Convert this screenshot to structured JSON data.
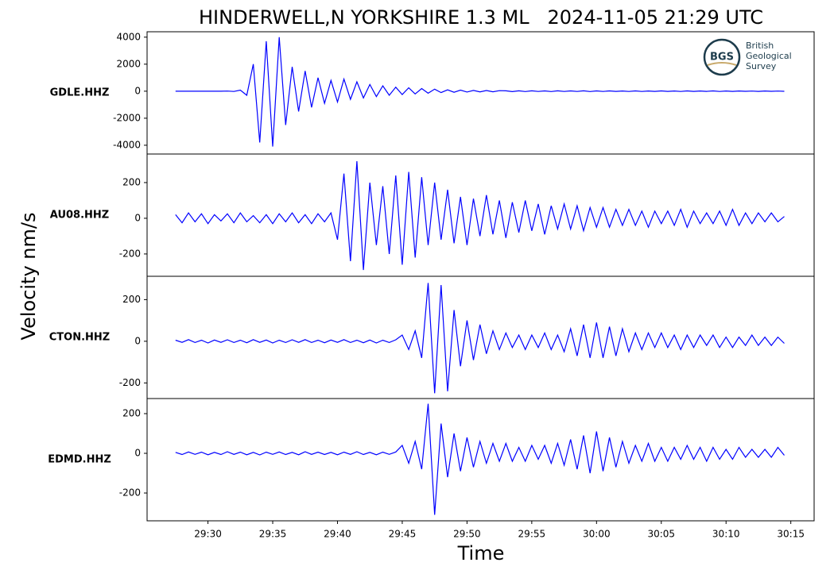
{
  "title": "HINDERWELL,N YORKSHIRE 1.3 ML   2024-11-05 21:29 UTC",
  "y_label": "Velocity nm/s",
  "x_label": "Time",
  "logo": {
    "mark": "BGS",
    "lines": [
      "British",
      "Geological",
      "Survey"
    ]
  },
  "chart_data": [
    {
      "type": "line",
      "ylabel": "GDLE.HHZ",
      "color": "#0000ff",
      "xlim": [
        1765.3,
        1816.8
      ],
      "ylim": [
        -4650,
        4400
      ],
      "yticks": [
        -4000,
        -2000,
        0,
        2000,
        4000
      ],
      "x": [
        1767.5,
        1768,
        1768.5,
        1769,
        1769.5,
        1770,
        1770.5,
        1771,
        1771.5,
        1772,
        1772.5,
        1773,
        1773.5,
        1774,
        1774.5,
        1775,
        1775.5,
        1776,
        1776.5,
        1777,
        1777.5,
        1778,
        1778.5,
        1779,
        1779.5,
        1780,
        1780.5,
        1781,
        1781.5,
        1782,
        1782.5,
        1783,
        1783.5,
        1784,
        1784.5,
        1785,
        1785.5,
        1786,
        1786.5,
        1787,
        1787.5,
        1788,
        1788.5,
        1789,
        1789.5,
        1790,
        1790.5,
        1791,
        1791.5,
        1792,
        1792.5,
        1793,
        1793.5,
        1794,
        1794.5,
        1795,
        1795.5,
        1796,
        1796.5,
        1797,
        1797.5,
        1798,
        1798.5,
        1799,
        1799.5,
        1800,
        1800.5,
        1801,
        1801.5,
        1802,
        1802.5,
        1803,
        1803.5,
        1804,
        1804.5,
        1805,
        1805.5,
        1806,
        1806.5,
        1807,
        1807.5,
        1808,
        1808.5,
        1809,
        1809.5,
        1810,
        1810.5,
        1811,
        1811.5,
        1812,
        1812.5,
        1813,
        1813.5,
        1814,
        1814.5
      ],
      "values": [
        0,
        0,
        0,
        0,
        0,
        0,
        0,
        0,
        10,
        -20,
        80,
        -300,
        2000,
        -3800,
        3700,
        -4100,
        4000,
        -2500,
        1800,
        -1500,
        1500,
        -1200,
        1000,
        -900,
        800,
        -800,
        900,
        -600,
        700,
        -500,
        500,
        -400,
        400,
        -300,
        300,
        -250,
        250,
        -200,
        200,
        -150,
        150,
        -100,
        100,
        -80,
        80,
        -60,
        60,
        -50,
        50,
        -40,
        40,
        30,
        -30,
        25,
        -25,
        30,
        -20,
        20,
        -25,
        25,
        -20,
        20,
        -20,
        25,
        -25,
        20,
        -20,
        20,
        -15,
        15,
        -20,
        20,
        -20,
        15,
        -15,
        20,
        -15,
        15,
        -20,
        20,
        -15,
        15,
        -15,
        20,
        -20,
        15,
        -15,
        15,
        -10,
        10,
        -15,
        15,
        -10,
        10,
        -10
      ]
    },
    {
      "type": "line",
      "ylabel": "AU08.HHZ",
      "color": "#0000ff",
      "xlim": [
        1765.3,
        1816.8
      ],
      "ylim": [
        -325,
        360
      ],
      "yticks": [
        -200,
        0,
        200
      ],
      "x": [
        1767.5,
        1768,
        1768.5,
        1769,
        1769.5,
        1770,
        1770.5,
        1771,
        1771.5,
        1772,
        1772.5,
        1773,
        1773.5,
        1774,
        1774.5,
        1775,
        1775.5,
        1776,
        1776.5,
        1777,
        1777.5,
        1778,
        1778.5,
        1779,
        1779.5,
        1780,
        1780.5,
        1781,
        1781.5,
        1782,
        1782.5,
        1783,
        1783.5,
        1784,
        1784.5,
        1785,
        1785.5,
        1786,
        1786.5,
        1787,
        1787.5,
        1788,
        1788.5,
        1789,
        1789.5,
        1790,
        1790.5,
        1791,
        1791.5,
        1792,
        1792.5,
        1793,
        1793.5,
        1794,
        1794.5,
        1795,
        1795.5,
        1796,
        1796.5,
        1797,
        1797.5,
        1798,
        1798.5,
        1799,
        1799.5,
        1800,
        1800.5,
        1801,
        1801.5,
        1802,
        1802.5,
        1803,
        1803.5,
        1804,
        1804.5,
        1805,
        1805.5,
        1806,
        1806.5,
        1807,
        1807.5,
        1808,
        1808.5,
        1809,
        1809.5,
        1810,
        1810.5,
        1811,
        1811.5,
        1812,
        1812.5,
        1813,
        1813.5,
        1814,
        1814.5
      ],
      "values": [
        20,
        -25,
        30,
        -20,
        25,
        -30,
        20,
        -15,
        25,
        -25,
        30,
        -20,
        15,
        -25,
        20,
        -30,
        25,
        -20,
        30,
        -25,
        20,
        -30,
        25,
        -20,
        30,
        -120,
        250,
        -240,
        320,
        -290,
        200,
        -150,
        180,
        -200,
        240,
        -260,
        260,
        -220,
        230,
        -150,
        200,
        -120,
        160,
        -140,
        120,
        -150,
        110,
        -100,
        130,
        -90,
        100,
        -110,
        90,
        -80,
        100,
        -70,
        80,
        -90,
        70,
        -60,
        80,
        -60,
        70,
        -70,
        60,
        -50,
        60,
        -50,
        50,
        -40,
        50,
        -40,
        40,
        -50,
        40,
        -30,
        40,
        -40,
        50,
        -50,
        40,
        -30,
        30,
        -30,
        40,
        -40,
        50,
        -40,
        30,
        -30,
        30,
        -20,
        30,
        -20,
        10
      ]
    },
    {
      "type": "line",
      "ylabel": "CTON.HHZ",
      "color": "#0000ff",
      "xlim": [
        1765.3,
        1816.8
      ],
      "ylim": [
        -275,
        312
      ],
      "yticks": [
        -200,
        0,
        200
      ],
      "x": [
        1767.5,
        1768,
        1768.5,
        1769,
        1769.5,
        1770,
        1770.5,
        1771,
        1771.5,
        1772,
        1772.5,
        1773,
        1773.5,
        1774,
        1774.5,
        1775,
        1775.5,
        1776,
        1776.5,
        1777,
        1777.5,
        1778,
        1778.5,
        1779,
        1779.5,
        1780,
        1780.5,
        1781,
        1781.5,
        1782,
        1782.5,
        1783,
        1783.5,
        1784,
        1784.5,
        1785,
        1785.5,
        1786,
        1786.5,
        1787,
        1787.5,
        1788,
        1788.5,
        1789,
        1789.5,
        1790,
        1790.5,
        1791,
        1791.5,
        1792,
        1792.5,
        1793,
        1793.5,
        1794,
        1794.5,
        1795,
        1795.5,
        1796,
        1796.5,
        1797,
        1797.5,
        1798,
        1798.5,
        1799,
        1799.5,
        1800,
        1800.5,
        1801,
        1801.5,
        1802,
        1802.5,
        1803,
        1803.5,
        1804,
        1804.5,
        1805,
        1805.5,
        1806,
        1806.5,
        1807,
        1807.5,
        1808,
        1808.5,
        1809,
        1809.5,
        1810,
        1810.5,
        1811,
        1811.5,
        1812,
        1812.5,
        1813,
        1813.5,
        1814,
        1814.5
      ],
      "values": [
        5,
        -5,
        8,
        -6,
        5,
        -8,
        6,
        -5,
        7,
        -6,
        5,
        -7,
        8,
        -5,
        6,
        -8,
        5,
        -6,
        7,
        -5,
        8,
        -6,
        5,
        -7,
        6,
        -5,
        8,
        -6,
        5,
        -7,
        6,
        -8,
        5,
        -6,
        7,
        30,
        -40,
        50,
        -80,
        280,
        -250,
        270,
        -240,
        150,
        -120,
        100,
        -90,
        80,
        -60,
        50,
        -40,
        40,
        -30,
        30,
        -40,
        30,
        -30,
        40,
        -40,
        30,
        -50,
        60,
        -70,
        80,
        -80,
        90,
        -80,
        70,
        -70,
        60,
        -50,
        40,
        -40,
        40,
        -30,
        40,
        -30,
        30,
        -40,
        30,
        -30,
        30,
        -20,
        30,
        -30,
        20,
        -30,
        20,
        -20,
        30,
        -20,
        20,
        -20,
        20,
        -10
      ]
    },
    {
      "type": "line",
      "ylabel": "EDMD.HHZ",
      "color": "#0000ff",
      "xlim": [
        1765.3,
        1816.8
      ],
      "ylim": [
        -340,
        276
      ],
      "yticks": [
        -200,
        0,
        200
      ],
      "xticks": [
        {
          "value": 1770,
          "label": "29:30"
        },
        {
          "value": 1775,
          "label": "29:35"
        },
        {
          "value": 1780,
          "label": "29:40"
        },
        {
          "value": 1785,
          "label": "29:45"
        },
        {
          "value": 1790,
          "label": "29:50"
        },
        {
          "value": 1795,
          "label": "29:55"
        },
        {
          "value": 1800,
          "label": "30:00"
        },
        {
          "value": 1805,
          "label": "30:05"
        },
        {
          "value": 1810,
          "label": "30:10"
        },
        {
          "value": 1815,
          "label": "30:15"
        }
      ],
      "x": [
        1767.5,
        1768,
        1768.5,
        1769,
        1769.5,
        1770,
        1770.5,
        1771,
        1771.5,
        1772,
        1772.5,
        1773,
        1773.5,
        1774,
        1774.5,
        1775,
        1775.5,
        1776,
        1776.5,
        1777,
        1777.5,
        1778,
        1778.5,
        1779,
        1779.5,
        1780,
        1780.5,
        1781,
        1781.5,
        1782,
        1782.5,
        1783,
        1783.5,
        1784,
        1784.5,
        1785,
        1785.5,
        1786,
        1786.5,
        1787,
        1787.5,
        1788,
        1788.5,
        1789,
        1789.5,
        1790,
        1790.5,
        1791,
        1791.5,
        1792,
        1792.5,
        1793,
        1793.5,
        1794,
        1794.5,
        1795,
        1795.5,
        1796,
        1796.5,
        1797,
        1797.5,
        1798,
        1798.5,
        1799,
        1799.5,
        1800,
        1800.5,
        1801,
        1801.5,
        1802,
        1802.5,
        1803,
        1803.5,
        1804,
        1804.5,
        1805,
        1805.5,
        1806,
        1806.5,
        1807,
        1807.5,
        1808,
        1808.5,
        1809,
        1809.5,
        1810,
        1810.5,
        1811,
        1811.5,
        1812,
        1812.5,
        1813,
        1813.5,
        1814,
        1814.5
      ],
      "values": [
        5,
        -6,
        7,
        -5,
        6,
        -7,
        5,
        -6,
        8,
        -5,
        6,
        -7,
        5,
        -8,
        6,
        -5,
        7,
        -6,
        5,
        -7,
        8,
        -5,
        6,
        -6,
        5,
        -7,
        6,
        -5,
        8,
        -6,
        5,
        -7,
        6,
        -5,
        7,
        40,
        -50,
        60,
        -80,
        250,
        -310,
        150,
        -120,
        100,
        -90,
        80,
        -70,
        60,
        -50,
        50,
        -40,
        50,
        -40,
        30,
        -40,
        40,
        -30,
        40,
        -50,
        50,
        -60,
        70,
        -80,
        90,
        -100,
        110,
        -90,
        80,
        -70,
        60,
        -50,
        40,
        -40,
        50,
        -40,
        30,
        -40,
        30,
        -30,
        40,
        -30,
        30,
        -40,
        30,
        -30,
        20,
        -30,
        30,
        -20,
        20,
        -20,
        20,
        -20,
        30,
        -10
      ]
    }
  ]
}
